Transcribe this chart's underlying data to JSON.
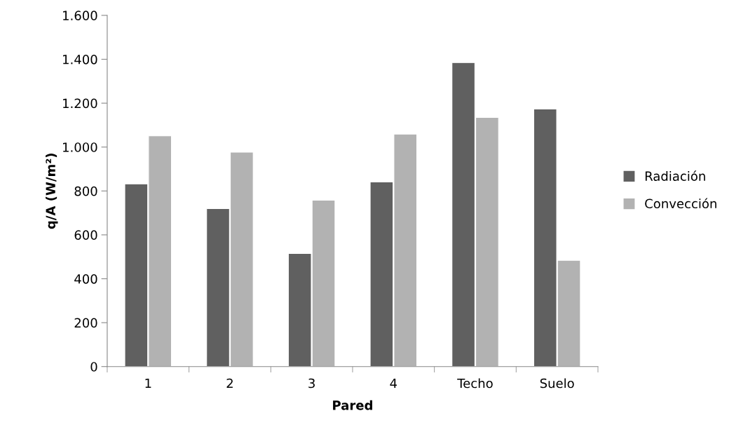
{
  "chart_data": {
    "type": "bar",
    "xlabel": "Pared",
    "ylabel": "q/A (W/m²)",
    "categories": [
      "1",
      "2",
      "3",
      "4",
      "Techo",
      "Suelo"
    ],
    "series": [
      {
        "name": "Radiación",
        "color": "#606060",
        "values": [
          832,
          720,
          515,
          841,
          1385,
          1173
        ]
      },
      {
        "name": "Convección",
        "color": "#b2b2b2",
        "values": [
          1051,
          977,
          758,
          1059,
          1135,
          484
        ]
      }
    ],
    "ylim": [
      0,
      1600
    ],
    "yticks": [
      {
        "value": 0,
        "label": "0"
      },
      {
        "value": 200,
        "label": "200"
      },
      {
        "value": 400,
        "label": "400"
      },
      {
        "value": 600,
        "label": "600"
      },
      {
        "value": 800,
        "label": "800"
      },
      {
        "value": 1000,
        "label": "1.000"
      },
      {
        "value": 1200,
        "label": "1.200"
      },
      {
        "value": 1400,
        "label": "1.400"
      },
      {
        "value": 1600,
        "label": "1.600"
      }
    ],
    "grid": false,
    "legend": "right"
  }
}
